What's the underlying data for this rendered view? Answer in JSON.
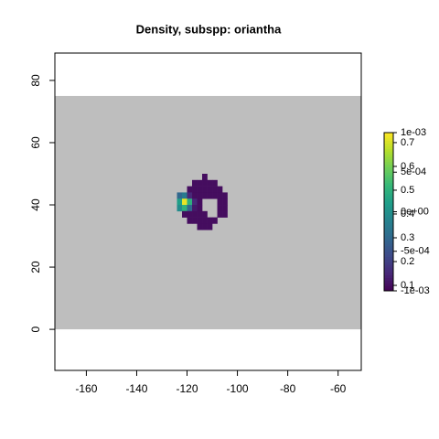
{
  "chart_data": {
    "type": "raster",
    "title": "Density, subspp: oriantha",
    "xlim": [
      -172.5,
      -50.8
    ],
    "ylim": [
      -13.2,
      88.8
    ],
    "xticks": [
      -160,
      -140,
      -120,
      -100,
      -80,
      -60
    ],
    "yticks": [
      0,
      20,
      40,
      60,
      80
    ],
    "mask_ylim": [
      0,
      75
    ],
    "mask_color": "#bebebe",
    "cell_size": 2,
    "cell_x": [
      -114,
      -118,
      -116,
      -114,
      -112,
      -110,
      -120,
      -118,
      -116,
      -114,
      -112,
      -110,
      -108,
      -124,
      -122,
      -120,
      -118,
      -116,
      -114,
      -112,
      -110,
      -108,
      -106,
      -124,
      -122,
      -120,
      -118,
      -116,
      -108,
      -106,
      -124,
      -122,
      -120,
      -118,
      -116,
      -108,
      -106,
      -122,
      -120,
      -118,
      -116,
      -114,
      -108,
      -106,
      -120,
      -118,
      -116,
      -114,
      -112,
      -110,
      -116,
      -114,
      -112
    ],
    "cell_y": [
      48,
      46,
      46,
      46,
      46,
      46,
      44,
      44,
      44,
      44,
      44,
      44,
      44,
      42,
      42,
      42,
      42,
      42,
      42,
      42,
      42,
      42,
      42,
      40,
      40,
      40,
      40,
      40,
      40,
      40,
      38,
      38,
      38,
      38,
      38,
      38,
      38,
      36,
      36,
      36,
      36,
      36,
      36,
      36,
      34,
      34,
      34,
      34,
      34,
      34,
      32,
      32,
      32
    ],
    "values": [
      0.1,
      0.1,
      0.1,
      0.1,
      0.1,
      0.1,
      0.1,
      0.1,
      0.1,
      0.1,
      0.1,
      0.1,
      0.1,
      0.3,
      0.35,
      0.15,
      0.1,
      0.1,
      0.1,
      0.1,
      0.1,
      0.1,
      0.1,
      0.45,
      0.72,
      0.5,
      0.15,
      0.1,
      0.1,
      0.1,
      0.4,
      0.5,
      0.3,
      0.12,
      0.1,
      0.1,
      0.1,
      0.1,
      0.1,
      0.1,
      0.1,
      0.1,
      0.1,
      0.1,
      0.1,
      0.1,
      0.1,
      0.1,
      0.1,
      0.1,
      0.1,
      0.1,
      0.1
    ],
    "colormap": [
      "#440154",
      "#482878",
      "#3e4a89",
      "#31688e",
      "#26828e",
      "#1f9e89",
      "#35b779",
      "#6ece58",
      "#b5de2b",
      "#fde725"
    ],
    "legend_lim": [
      0.077,
      0.742
    ],
    "legend_ticks": [
      0.1,
      0.2,
      0.3,
      0.4,
      0.5,
      0.6,
      0.7
    ],
    "legend2_lim": [
      -0.001,
      0.001
    ],
    "legend2_ticks": [
      {
        "value": -0.001,
        "label": "-1e-03"
      },
      {
        "value": -0.0005,
        "label": "-5e-04"
      },
      {
        "value": 0,
        "label": "0e+00"
      },
      {
        "value": 0.0005,
        "label": "5e-04"
      },
      {
        "value": 0.001,
        "label": "1e-03"
      }
    ]
  }
}
